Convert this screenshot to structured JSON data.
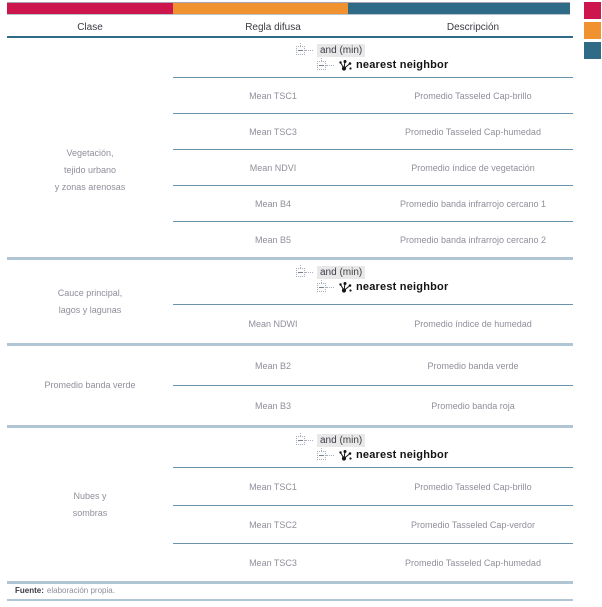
{
  "colors": {
    "crimson": "#CE164E",
    "orange": "#F0922F",
    "teal": "#2F6B87",
    "rule-light": "#B0C6D4",
    "rule-inner": "#6B92AB",
    "text-gray": "#8F8F9B",
    "text-dark": "#3B3B45"
  },
  "legend": {
    "swatches": [
      "crimson",
      "orange",
      "teal"
    ]
  },
  "table": {
    "headers": [
      "Clase",
      "Regla difusa",
      "Descripción"
    ],
    "tree": {
      "node1": "and (min)",
      "node2": "nearest neighbor"
    },
    "groups": [
      {
        "clase": [
          "Vegetación,",
          "tejido urbano",
          "y zonas arenosas"
        ],
        "has_tree": true,
        "rows": [
          {
            "regla": "Mean TSC1",
            "desc": "Promedio Tasseled Cap-brillo"
          },
          {
            "regla": "Mean TSC3",
            "desc": "Promedio Tasseled Cap-humedad"
          },
          {
            "regla": "Mean NDVI",
            "desc": "Promedio índice de vegetación"
          },
          {
            "regla": "Mean B4",
            "desc": "Promedio banda infrarrojo cercano 1"
          },
          {
            "regla": "Mean B5",
            "desc": "Promedio banda infrarrojo cercano 2"
          }
        ]
      },
      {
        "clase": [
          "Cauce principal,",
          "lagos y lagunas"
        ],
        "has_tree": true,
        "rows": [
          {
            "regla": "Mean NDWI",
            "desc": "Promedio índice de humedad"
          }
        ]
      },
      {
        "clase": [
          "Promedio banda verde"
        ],
        "has_tree": false,
        "rows": [
          {
            "regla": "Mean B2",
            "desc": "Promedio banda verde"
          },
          {
            "regla": "Mean B3",
            "desc": "Promedio banda roja"
          }
        ]
      },
      {
        "clase": [
          "Nubes y",
          "sombras"
        ],
        "has_tree": true,
        "rows": [
          {
            "regla": "Mean TSC1",
            "desc": "Promedio Tasseled Cap-brillo"
          },
          {
            "regla": "Mean TSC2",
            "desc": "Promedio Tasseled Cap-verdor"
          },
          {
            "regla": "Mean TSC3",
            "desc": "Promedio Tasseled Cap-humedad"
          }
        ]
      }
    ]
  },
  "footer": {
    "label": "Fuente:",
    "text": "elaboración propia."
  }
}
